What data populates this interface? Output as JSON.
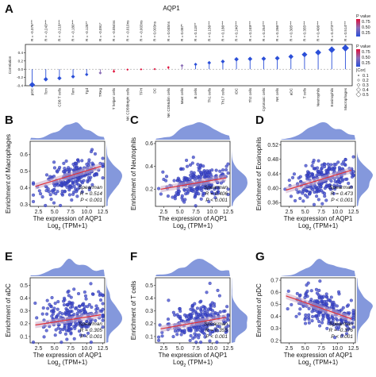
{
  "chart_data": [
    {
      "id": "A",
      "type": "lollipop",
      "panel_label": "A",
      "title": "AQP1",
      "ylabel": "Correlation",
      "ylim": [
        -0.4,
        0.6
      ],
      "yticks": [
        "-0.4",
        "-0.2",
        "0.0",
        "0.2",
        "0.4"
      ],
      "categories": [
        "pDC",
        "Tcm",
        "CD8 T cells",
        "Tem",
        "Tgd",
        "TReg",
        "T helper cells",
        "NK CD56bright cells",
        "TFH",
        "DC",
        "NK CD56dim cells",
        "Mast cells",
        "B cells",
        "Th1 cells",
        "Th17 cells",
        "iDC",
        "Th2 cells",
        "Cytotoxic cells",
        "NK cells",
        "aDC",
        "T cells",
        "Neutrophils",
        "Eosinophils",
        "Macrophages"
      ],
      "values": [
        -0.376,
        -0.243,
        -0.218,
        -0.18,
        -0.128,
        -0.091,
        -0.054,
        -0.01,
        -0.003,
        0.003,
        0.045,
        0.087,
        0.118,
        0.156,
        0.186,
        0.24,
        0.249,
        0.254,
        0.266,
        0.305,
        0.355,
        0.406,
        0.473,
        0.514
      ],
      "r_labels": [
        "R = -0.376***",
        "R = -0.243***",
        "R = -0.218***",
        "R = -0.180***",
        "R = -0.128**",
        "R = -0.091*",
        "R = -0.054ns",
        "R = -0.010ns",
        "R = -0.003ns",
        "R = 0.003ns",
        "R = 0.045ns",
        "R = 0.087*",
        "R = 0.118**",
        "R = 0.156***",
        "R = 0.186***",
        "R = 0.240***",
        "R = 0.249***",
        "R = 0.254***",
        "R = 0.266***",
        "R = 0.305***",
        "R = 0.355***",
        "R = 0.406***",
        "R = 0.473***",
        "R = 0.514***"
      ],
      "legend_pvalue": {
        "title": "P value",
        "ticks": [
          "0.75",
          "0.50",
          "0.25"
        ]
      },
      "legend_cor": {
        "title": "|Cor|",
        "ticks": [
          "0.1",
          "0.2",
          "0.3",
          "0.4",
          "0.5"
        ]
      },
      "colors": {
        "high": "#2b4fd8",
        "mid": "#8a6db6",
        "low": "#e0103a"
      }
    },
    {
      "id": "B",
      "type": "scatter",
      "panel_label": "B",
      "ylabel": "Enrichment of Macrophages",
      "xlabel_line1": "The expression of AQP1",
      "xlabel_line2": "Log",
      "xlabel_sub": "2",
      "xlabel_suffix": " (TPM+1)",
      "xlim": [
        1.2,
        12.8
      ],
      "xticks": [
        2.5,
        5.0,
        7.5,
        10.0,
        12.5
      ],
      "ylim": [
        0.29,
        0.68
      ],
      "yticks": [
        0.3,
        0.4,
        0.5,
        0.6
      ],
      "fit": {
        "x": [
          2.0,
          12.2
        ],
        "y": [
          0.41,
          0.53
        ]
      },
      "annotation": [
        "Spearman",
        "R = 0.514",
        "P < 0.001"
      ],
      "cloud": {
        "cx": 7.8,
        "cy": 0.46,
        "sx": 2.3,
        "sy": 0.055,
        "slope": 0.012
      },
      "point_color": "#3d49cc",
      "line_color": "#e0303a"
    },
    {
      "id": "C",
      "type": "scatter",
      "panel_label": "C",
      "ylabel": "Enrichment of Neutrophils",
      "xlabel_line1": "The expression of AQP1",
      "xlabel_line2": "Log",
      "xlabel_sub": "2",
      "xlabel_suffix": " (TPM+1)",
      "xlim": [
        1.2,
        12.8
      ],
      "xticks": [
        2.5,
        5.0,
        7.5,
        10.0,
        12.5
      ],
      "ylim": [
        0.05,
        0.62
      ],
      "yticks": [
        0.2,
        0.4,
        0.6
      ],
      "fit": {
        "x": [
          2.0,
          12.2
        ],
        "y": [
          0.2,
          0.3
        ]
      },
      "annotation": [
        "Spearman",
        "R = 0.406",
        "P < 0.001"
      ],
      "cloud": {
        "cx": 7.8,
        "cy": 0.26,
        "sx": 2.3,
        "sy": 0.07,
        "slope": 0.01
      },
      "point_color": "#3d49cc",
      "line_color": "#e0303a"
    },
    {
      "id": "D",
      "type": "scatter",
      "panel_label": "D",
      "ylabel": "Enrichment of Eosinophils",
      "xlabel_line1": "The expression of AQP1",
      "xlabel_line2": "Log",
      "xlabel_sub": "2",
      "xlabel_suffix": " (TPM+1)",
      "xlim": [
        1.2,
        12.8
      ],
      "xticks": [
        2.5,
        5.0,
        7.5,
        10.0,
        12.5
      ],
      "ylim": [
        0.35,
        0.53
      ],
      "yticks": [
        0.36,
        0.4,
        0.44,
        0.48,
        0.52
      ],
      "fit": {
        "x": [
          2.0,
          12.2
        ],
        "y": [
          0.395,
          0.45
        ]
      },
      "annotation": [
        "Spearman",
        "R = 0.473",
        "P < 0.001"
      ],
      "cloud": {
        "cx": 7.8,
        "cy": 0.425,
        "sx": 2.3,
        "sy": 0.024,
        "slope": 0.0054
      },
      "point_color": "#3d49cc",
      "line_color": "#e0303a"
    },
    {
      "id": "E",
      "type": "scatter",
      "panel_label": "E",
      "ylabel": "Enrichment of aDC",
      "xlabel_line1": "The expression of AQP1",
      "xlabel_line2": "Log",
      "xlabel_sub": "2",
      "xlabel_suffix": " (TPM+1)",
      "xlim": [
        1.2,
        12.8
      ],
      "xticks": [
        2.5,
        5.0,
        7.5,
        10.0,
        12.5
      ],
      "ylim": [
        0.05,
        0.56
      ],
      "yticks": [
        0.1,
        0.2,
        0.3,
        0.4,
        0.5
      ],
      "fit": {
        "x": [
          2.0,
          12.2
        ],
        "y": [
          0.19,
          0.27
        ]
      },
      "annotation": [
        "Spearman",
        "R = 0.305",
        "P < 0.001"
      ],
      "cloud": {
        "cx": 7.8,
        "cy": 0.26,
        "sx": 2.3,
        "sy": 0.085,
        "slope": 0.008
      },
      "point_color": "#3d49cc",
      "line_color": "#e0303a"
    },
    {
      "id": "F",
      "type": "scatter",
      "panel_label": "F",
      "ylabel": "Enrichment of T cells",
      "xlabel_line1": "The expression of AQP1",
      "xlabel_line2": "Log",
      "xlabel_sub": "2",
      "xlabel_suffix": " (TPM+1)",
      "xlim": [
        1.2,
        12.8
      ],
      "xticks": [
        2.5,
        5.0,
        7.5,
        10.0,
        12.5
      ],
      "ylim": [
        0.05,
        0.56
      ],
      "yticks": [
        0.1,
        0.2,
        0.3,
        0.4,
        0.5
      ],
      "fit": {
        "x": [
          2.0,
          12.2
        ],
        "y": [
          0.16,
          0.25
        ]
      },
      "annotation": [
        "Spearman",
        "R = 0.355",
        "P < 0.001"
      ],
      "cloud": {
        "cx": 7.8,
        "cy": 0.22,
        "sx": 2.3,
        "sy": 0.075,
        "slope": 0.009
      },
      "point_color": "#3d49cc",
      "line_color": "#e0303a"
    },
    {
      "id": "G",
      "type": "scatter",
      "panel_label": "G",
      "ylabel": "Enrichment of pDC",
      "xlabel_line1": "The expression of AQP1",
      "xlabel_line2": "Log",
      "xlabel_sub": "2",
      "xlabel_suffix": " (TPM+1)",
      "xlim": [
        1.2,
        12.8
      ],
      "xticks": [
        2.5,
        5.0,
        7.5,
        10.0,
        12.5
      ],
      "ylim": [
        0.18,
        0.72
      ],
      "yticks": [
        0.2,
        0.3,
        0.4,
        0.5,
        0.6,
        0.7
      ],
      "fit": {
        "x": [
          2.0,
          12.2
        ],
        "y": [
          0.57,
          0.38
        ]
      },
      "annotation": [
        "Spearman",
        "R = -0.376",
        "P < 0.001"
      ],
      "cloud": {
        "cx": 7.8,
        "cy": 0.47,
        "sx": 2.3,
        "sy": 0.08,
        "slope": -0.018
      },
      "point_color": "#3d49cc",
      "line_color": "#e0303a"
    }
  ]
}
